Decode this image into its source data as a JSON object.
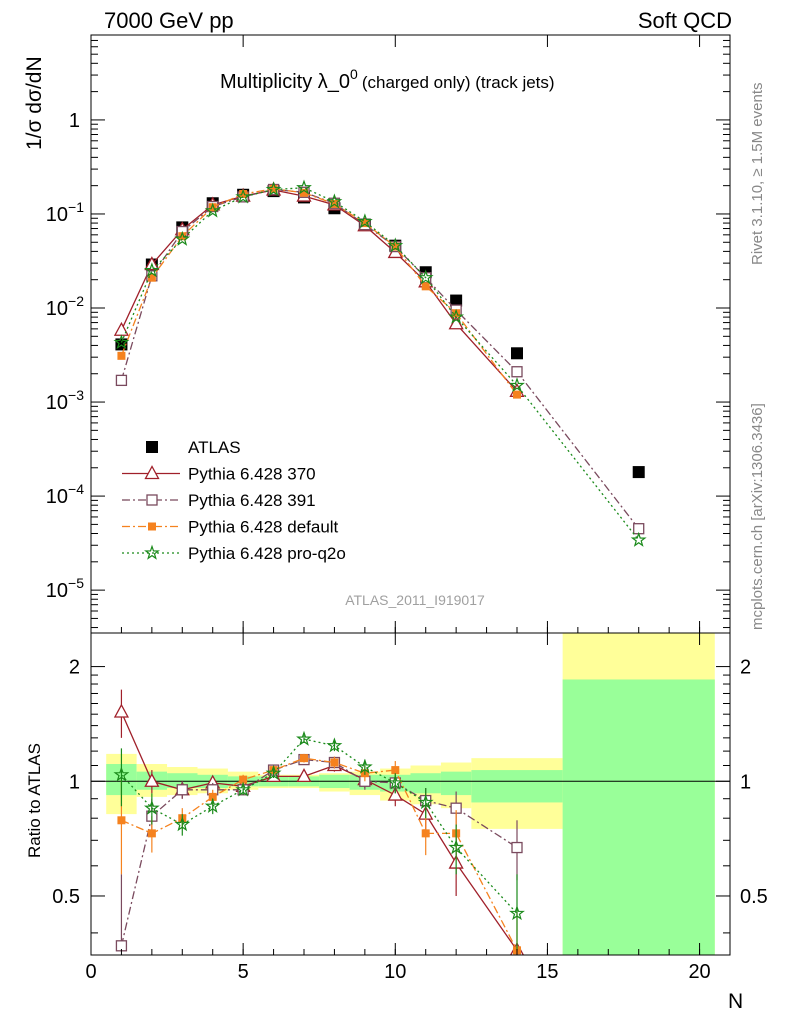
{
  "header": {
    "left": "7000 GeV pp",
    "right": "Soft QCD"
  },
  "side_text": {
    "rivet": "Rivet 3.1.10, ≥ 1.5M events",
    "source": "mcplots.cern.ch [arXiv:1306.3436]"
  },
  "chart_data": [
    {
      "type": "scatter",
      "title": "Multiplicity λ_0",
      "title_sup": "0",
      "title_suffix": "(charged only) (track jets)",
      "ylabel": "1/σ dσ/dN",
      "yscale": "log",
      "ylim": [
        3.5e-06,
        8
      ],
      "xlim": [
        0,
        21
      ],
      "yticks": [
        {
          "v": 1e-05,
          "base": "10",
          "exp": "−5"
        },
        {
          "v": 0.0001,
          "base": "10",
          "exp": "−4"
        },
        {
          "v": 0.001,
          "base": "10",
          "exp": "−3"
        },
        {
          "v": 0.01,
          "base": "10",
          "exp": "−2"
        },
        {
          "v": 0.1,
          "base": "10",
          "exp": "−1"
        },
        {
          "v": 1,
          "base": "1",
          "exp": ""
        }
      ],
      "watermark": "ATLAS_2011_I919017",
      "legend_position": "lower-left",
      "series": [
        {
          "name": "ATLAS",
          "color": "#000000",
          "marker": "filled-square",
          "line": "none",
          "x": [
            1,
            2,
            3,
            4,
            5,
            6,
            7,
            8,
            9,
            10,
            11,
            12,
            14,
            18
          ],
          "y": [
            0.0041,
            0.029,
            0.072,
            0.13,
            0.16,
            0.175,
            0.15,
            0.115,
            0.077,
            0.046,
            0.024,
            0.012,
            0.0033,
            0.00018
          ]
        },
        {
          "name": "Pythia 6.428 370",
          "color": "#a0202a",
          "marker": "open-triangle",
          "line": "solid",
          "x": [
            1,
            2,
            3,
            4,
            5,
            6,
            7,
            8,
            9,
            10,
            11,
            12,
            14
          ],
          "y": [
            0.0058,
            0.029,
            0.068,
            0.125,
            0.155,
            0.18,
            0.155,
            0.125,
            0.075,
            0.039,
            0.019,
            0.0068,
            0.0013
          ]
        },
        {
          "name": "Pythia 6.428 391",
          "color": "#7a4a5e",
          "marker": "open-square",
          "line": "dashdot",
          "x": [
            1,
            2,
            3,
            4,
            5,
            6,
            7,
            8,
            9,
            10,
            11,
            12,
            14,
            18
          ],
          "y": [
            0.0017,
            0.022,
            0.065,
            0.12,
            0.152,
            0.182,
            0.17,
            0.13,
            0.077,
            0.045,
            0.021,
            0.0095,
            0.0021,
            4.5e-05
          ]
        },
        {
          "name": "Pythia 6.428 default",
          "color": "#f5821f",
          "marker": "filled-square-small",
          "line": "dashdot",
          "x": [
            1,
            2,
            3,
            4,
            5,
            6,
            7,
            8,
            9,
            10,
            11,
            12,
            14
          ],
          "y": [
            0.0031,
            0.021,
            0.058,
            0.118,
            0.163,
            0.185,
            0.168,
            0.128,
            0.08,
            0.045,
            0.017,
            0.0088,
            0.0012
          ]
        },
        {
          "name": "Pythia 6.428 pro-q2o",
          "color": "#1a8a1a",
          "marker": "star",
          "line": "dotted",
          "x": [
            1,
            2,
            3,
            4,
            5,
            6,
            7,
            8,
            9,
            10,
            11,
            12,
            14,
            18
          ],
          "y": [
            0.0043,
            0.025,
            0.054,
            0.108,
            0.152,
            0.182,
            0.19,
            0.135,
            0.083,
            0.046,
            0.021,
            0.008,
            0.0015,
            3.4e-05
          ]
        }
      ]
    },
    {
      "type": "scatter",
      "ylabel": "Ratio to ATLAS",
      "xlabel": "N",
      "xlim": [
        0,
        21
      ],
      "ylim": [
        0.35,
        2.45
      ],
      "xticks": [
        0,
        5,
        10,
        15,
        20
      ],
      "yticks": [
        0.5,
        1,
        2
      ],
      "ytick_labels": [
        "0.5",
        "1",
        "2"
      ],
      "reference_line": 1,
      "bands": {
        "green_color": "#99ff99",
        "yellow_color": "#ffff99",
        "bins": [
          {
            "x0": 0.5,
            "x1": 1.5,
            "g": [
              0.92,
              1.11
            ],
            "y": [
              0.82,
              1.18
            ]
          },
          {
            "x0": 1.5,
            "x1": 2.5,
            "g": [
              0.95,
              1.06
            ],
            "y": [
              0.91,
              1.11
            ]
          },
          {
            "x0": 2.5,
            "x1": 3.5,
            "g": [
              0.96,
              1.05
            ],
            "y": [
              0.92,
              1.09
            ]
          },
          {
            "x0": 3.5,
            "x1": 4.5,
            "g": [
              0.96,
              1.04
            ],
            "y": [
              0.93,
              1.08
            ]
          },
          {
            "x0": 4.5,
            "x1": 5.5,
            "g": [
              0.97,
              1.03
            ],
            "y": [
              0.95,
              1.06
            ]
          },
          {
            "x0": 5.5,
            "x1": 6.5,
            "g": [
              0.97,
              1.03
            ],
            "y": [
              0.96,
              1.04
            ]
          },
          {
            "x0": 6.5,
            "x1": 7.5,
            "g": [
              0.97,
              1.03
            ],
            "y": [
              0.96,
              1.04
            ]
          },
          {
            "x0": 7.5,
            "x1": 8.5,
            "g": [
              0.96,
              1.04
            ],
            "y": [
              0.94,
              1.05
            ]
          },
          {
            "x0": 8.5,
            "x1": 9.5,
            "g": [
              0.95,
              1.04
            ],
            "y": [
              0.92,
              1.06
            ]
          },
          {
            "x0": 9.5,
            "x1": 10.5,
            "g": [
              0.94,
              1.04
            ],
            "y": [
              0.89,
              1.08
            ]
          },
          {
            "x0": 10.5,
            "x1": 11.5,
            "g": [
              0.93,
              1.05
            ],
            "y": [
              0.87,
              1.1
            ]
          },
          {
            "x0": 11.5,
            "x1": 12.5,
            "g": [
              0.92,
              1.06
            ],
            "y": [
              0.85,
              1.12
            ]
          },
          {
            "x0": 12.5,
            "x1": 15.5,
            "g": [
              0.88,
              1.07
            ],
            "y": [
              0.75,
              1.15
            ]
          },
          {
            "x0": 15.5,
            "x1": 20.5,
            "g": [
              0.35,
              1.85
            ],
            "y": [
              0.35,
              2.45
            ]
          }
        ]
      },
      "series": [
        {
          "name": "Pythia 6.428 370",
          "color": "#a0202a",
          "x": [
            1,
            2,
            3,
            4,
            5,
            6,
            7,
            8,
            9,
            10,
            11,
            12,
            14
          ],
          "y": [
            1.52,
            1.0,
            0.95,
            0.99,
            0.97,
            1.03,
            1.03,
            1.1,
            1.01,
            0.92,
            0.82,
            0.61,
            0.36
          ],
          "err": [
            0.22,
            0.07,
            0.05,
            0.04,
            0.03,
            0.03,
            0.03,
            0.04,
            0.05,
            0.06,
            0.08,
            0.11,
            0.0
          ]
        },
        {
          "name": "Pythia 6.428 391",
          "color": "#7a4a5e",
          "x": [
            1,
            2,
            3,
            4,
            5,
            6,
            7,
            8,
            9,
            10,
            11,
            12,
            14
          ],
          "y": [
            0.37,
            0.81,
            0.95,
            0.95,
            0.95,
            1.07,
            1.14,
            1.12,
            1.0,
            0.99,
            0.89,
            0.85,
            0.67
          ],
          "err": [
            0.2,
            0.09,
            0.05,
            0.04,
            0.03,
            0.03,
            0.03,
            0.04,
            0.05,
            0.06,
            0.07,
            0.09,
            0.12
          ]
        },
        {
          "name": "Pythia 6.428 default",
          "color": "#f5821f",
          "x": [
            1,
            2,
            3,
            4,
            5,
            6,
            7,
            8,
            9,
            10,
            11,
            12,
            14
          ],
          "y": [
            0.79,
            0.73,
            0.8,
            0.91,
            1.01,
            1.07,
            1.15,
            1.12,
            1.05,
            1.07,
            0.73,
            0.73,
            0.36
          ],
          "err": [
            0.22,
            0.08,
            0.05,
            0.04,
            0.03,
            0.03,
            0.03,
            0.04,
            0.05,
            0.06,
            0.09,
            0.11,
            0.1
          ]
        },
        {
          "name": "Pythia 6.428 pro-q2o",
          "color": "#1a8a1a",
          "x": [
            1,
            2,
            3,
            4,
            5,
            6,
            7,
            8,
            9,
            10,
            11,
            12,
            14
          ],
          "y": [
            1.04,
            0.85,
            0.77,
            0.86,
            0.95,
            1.05,
            1.29,
            1.24,
            1.09,
            0.99,
            0.88,
            0.67,
            0.45
          ],
          "err": [
            0.18,
            0.08,
            0.05,
            0.04,
            0.03,
            0.03,
            0.03,
            0.04,
            0.05,
            0.06,
            0.08,
            0.1,
            0.12
          ]
        }
      ]
    }
  ]
}
